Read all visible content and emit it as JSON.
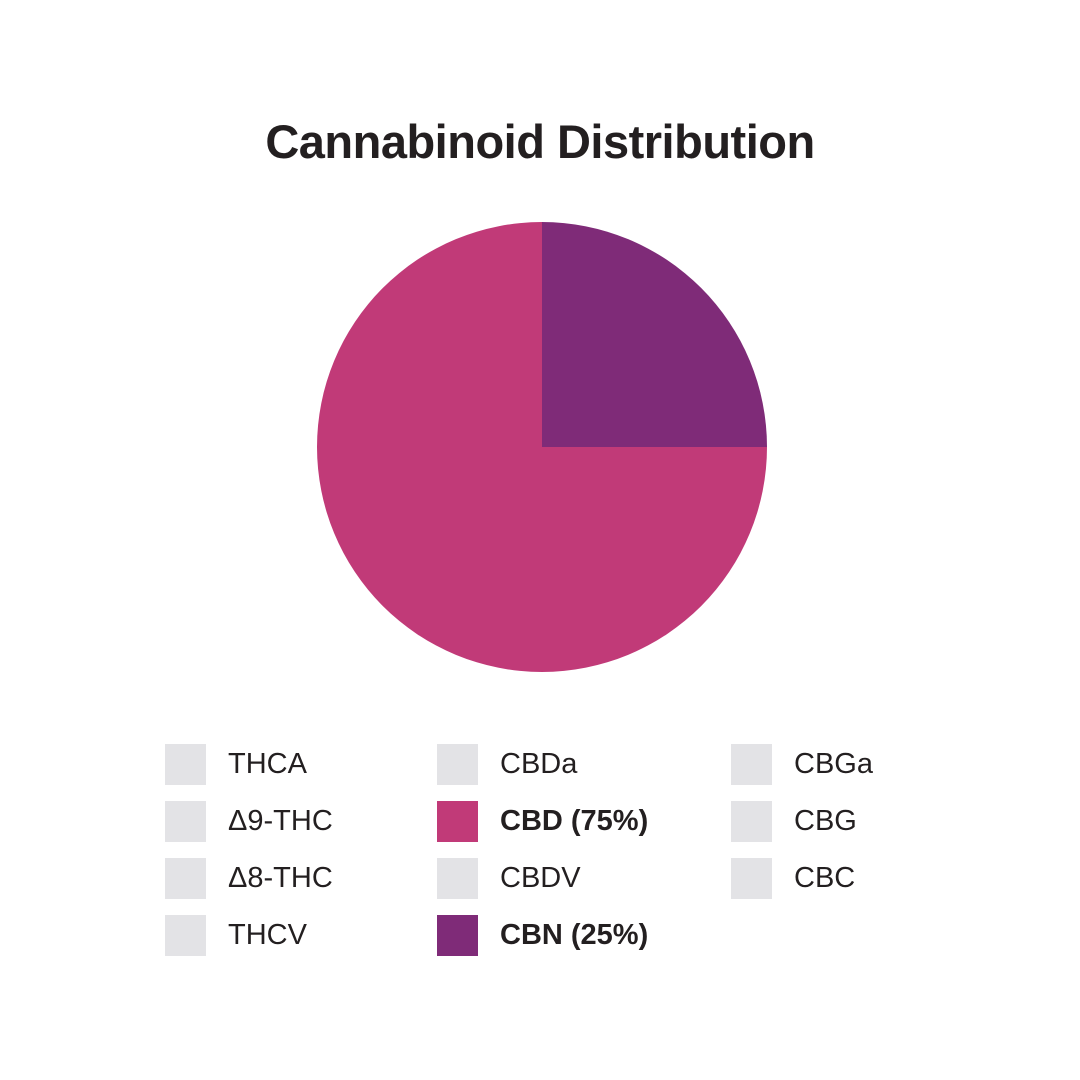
{
  "chart_data": {
    "type": "pie",
    "title": "Cannabinoid Distribution",
    "slices": [
      {
        "name": "CBN",
        "value": 25,
        "color": "#7f2b78"
      },
      {
        "name": "CBD",
        "value": 75,
        "color": "#c13a78"
      }
    ],
    "legend_placement": "bottom",
    "legend": {
      "columns": [
        [
          {
            "label": "THCA",
            "color": "#e3e3e6",
            "active": false
          },
          {
            "label": "Δ9-THC",
            "color": "#e3e3e6",
            "active": false
          },
          {
            "label": "Δ8-THC",
            "color": "#e3e3e6",
            "active": false
          },
          {
            "label": "THCV",
            "color": "#e3e3e6",
            "active": false
          }
        ],
        [
          {
            "label": "CBDa",
            "color": "#e3e3e6",
            "active": false
          },
          {
            "label": "CBD (75%)",
            "color": "#c13a78",
            "active": true
          },
          {
            "label": "CBDV",
            "color": "#e3e3e6",
            "active": false
          },
          {
            "label": "CBN (25%)",
            "color": "#7f2b78",
            "active": true
          }
        ],
        [
          {
            "label": "CBGa",
            "color": "#e3e3e6",
            "active": false
          },
          {
            "label": "CBG",
            "color": "#e3e3e6",
            "active": false
          },
          {
            "label": "CBC",
            "color": "#e3e3e6",
            "active": false
          }
        ]
      ]
    }
  }
}
